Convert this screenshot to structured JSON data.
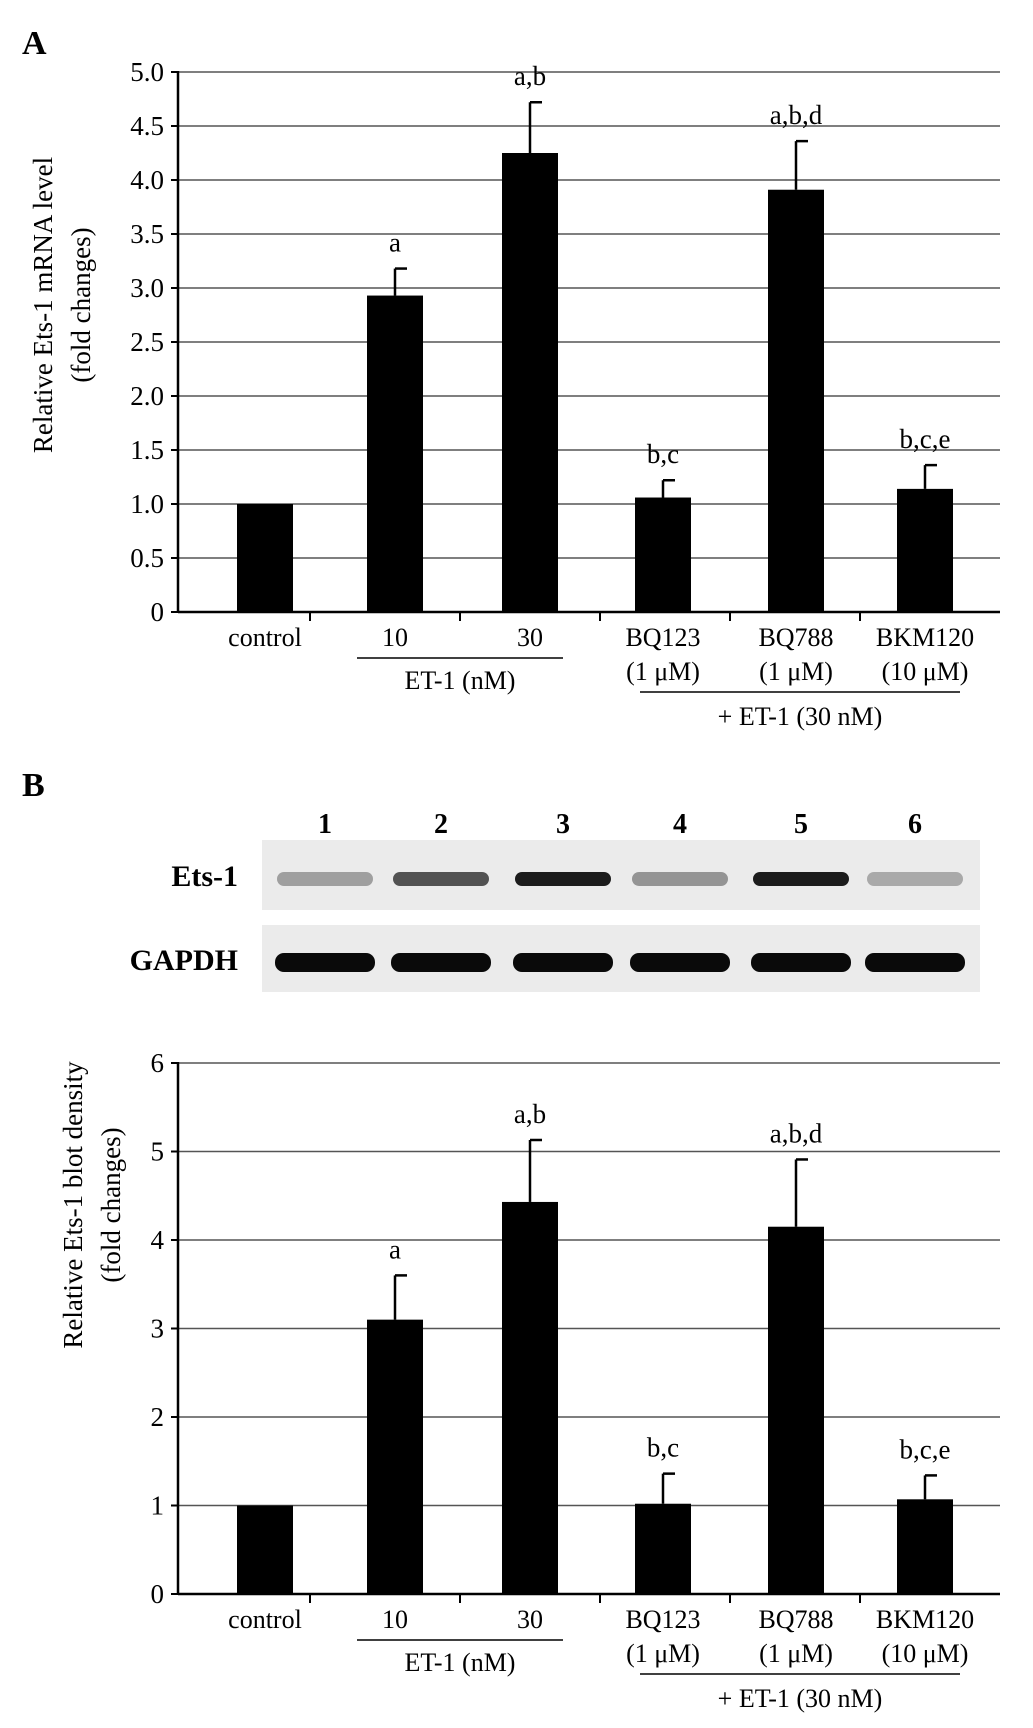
{
  "panel_a": {
    "label": "A",
    "ylabel_line1": "Relative Ets-1 mRNA level",
    "ylabel_line2": "(fold changes)"
  },
  "panel_b": {
    "label": "B",
    "lanes": [
      "1",
      "2",
      "3",
      "4",
      "5",
      "6"
    ],
    "row_labels": [
      "Ets-1",
      "GAPDH"
    ],
    "ets1_band_intensity": [
      0.35,
      0.7,
      0.95,
      0.4,
      0.95,
      0.3
    ],
    "gapdh_band_intensity": [
      1,
      1,
      1,
      1,
      1,
      1
    ],
    "ylabel_line1": "Relative Ets-1 blot density",
    "ylabel_line2": "(fold changes)"
  },
  "x_groups": {
    "et1_group_label": "ET-1 (nM)",
    "plus_et1_group_label": "+ ET-1 (30 nM)"
  },
  "chart_data": [
    {
      "type": "bar",
      "categories": [
        [
          "control"
        ],
        [
          "10"
        ],
        [
          "30"
        ],
        [
          "BQ123",
          "(1 μM)"
        ],
        [
          "BQ788",
          "(1 μM)"
        ],
        [
          "BKM120",
          "(10 μM)"
        ]
      ],
      "values": [
        1.0,
        2.93,
        4.25,
        1.06,
        3.91,
        1.14
      ],
      "errors": [
        0,
        0.25,
        0.47,
        0.16,
        0.45,
        0.22
      ],
      "annotations": [
        "",
        "a",
        "a,b",
        "b,c",
        "a,b,d",
        "b,c,e"
      ],
      "ylim": [
        0,
        5.0
      ],
      "yticks": [
        "0",
        "0.5",
        "1.0",
        "1.5",
        "2.0",
        "2.5",
        "3.0",
        "3.5",
        "4.0",
        "4.5",
        "5.0"
      ],
      "grid": true
    },
    {
      "type": "bar",
      "categories": [
        [
          "control"
        ],
        [
          "10"
        ],
        [
          "30"
        ],
        [
          "BQ123",
          "(1 μM)"
        ],
        [
          "BQ788",
          "(1 μM)"
        ],
        [
          "BKM120",
          "(10 μM)"
        ]
      ],
      "values": [
        1.0,
        3.1,
        4.43,
        1.02,
        4.15,
        1.07
      ],
      "errors": [
        0,
        0.5,
        0.7,
        0.34,
        0.76,
        0.27
      ],
      "annotations": [
        "",
        "a",
        "a,b",
        "b,c",
        "a,b,d",
        "b,c,e"
      ],
      "ylim": [
        0,
        6
      ],
      "yticks": [
        "0",
        "1",
        "2",
        "3",
        "4",
        "5",
        "6"
      ],
      "grid": true
    }
  ]
}
